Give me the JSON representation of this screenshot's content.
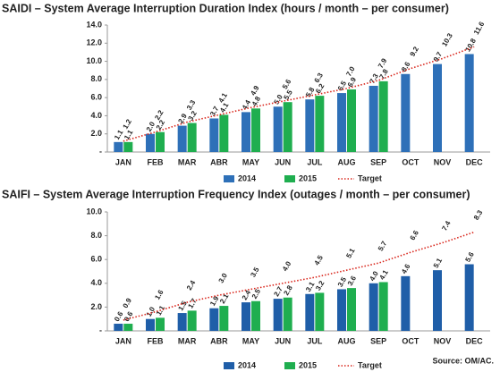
{
  "chart_data": [
    {
      "type": "bar",
      "title": "SAIDI – System Average Interruption Duration Index (hours / month – per consumer)",
      "categories": [
        "JAN",
        "FEB",
        "MAR",
        "ABR",
        "MAY",
        "JUN",
        "JUL",
        "AUG",
        "SEP",
        "OCT",
        "NOV",
        "DEC"
      ],
      "ylim": [
        0,
        14
      ],
      "yticks": [
        {
          "value": 0,
          "label": "-"
        },
        {
          "value": 2,
          "label": "2.0"
        },
        {
          "value": 4,
          "label": "4.0"
        },
        {
          "value": 6,
          "label": "6.0"
        },
        {
          "value": 8,
          "label": "8.0"
        },
        {
          "value": 10,
          "label": "10.0"
        },
        {
          "value": 12,
          "label": "12.0"
        },
        {
          "value": 14,
          "label": "14.0"
        }
      ],
      "series": [
        {
          "name": "2014",
          "type": "bar",
          "color": "#2e70b8",
          "values": [
            1.1,
            2.0,
            2.9,
            3.7,
            4.4,
            5.0,
            5.8,
            6.5,
            7.3,
            8.6,
            9.7,
            10.8
          ],
          "value_labels": [
            "1.1",
            "2.0",
            "2.9",
            "3.7",
            "4.4",
            "5.0",
            "5.8",
            "6.5",
            "7.3",
            "8.6",
            "9.7",
            "10.8"
          ]
        },
        {
          "name": "2015",
          "type": "bar",
          "color": "#1fae4f",
          "values": [
            1.1,
            2.2,
            3.2,
            4.1,
            4.8,
            5.5,
            6.2,
            6.9,
            7.8,
            null,
            null,
            null
          ],
          "value_labels": [
            "1.1",
            "2.2",
            "3.2",
            "4.1",
            "4.8",
            "5.5",
            "6.2",
            "6.9",
            "7.8",
            null,
            null,
            null
          ]
        },
        {
          "name": "Target",
          "type": "line",
          "color": "#d9261c",
          "values": [
            1.2,
            2.2,
            3.3,
            4.1,
            4.9,
            5.6,
            6.3,
            7.0,
            7.9,
            9.2,
            10.3,
            11.6
          ],
          "value_labels": [
            "1.2",
            "2.2",
            "3.3",
            "4.1",
            "4.9",
            "5.6",
            "6.3",
            "7.0",
            "7.9",
            "9.2",
            "10.3",
            "11.6"
          ]
        }
      ]
    },
    {
      "type": "bar",
      "title": "SAIFI – System Average Interruption Frequency Index (outages / month – per consumer)",
      "categories": [
        "JAN",
        "FEB",
        "MAR",
        "ABR",
        "MAY",
        "JUN",
        "JUL",
        "AUG",
        "SEP",
        "OCT",
        "NOV",
        "DEC"
      ],
      "ylim": [
        0,
        10
      ],
      "yticks": [
        {
          "value": 0,
          "label": "-"
        },
        {
          "value": 2,
          "label": "2.0"
        },
        {
          "value": 4,
          "label": "4.0"
        },
        {
          "value": 6,
          "label": "6.0"
        },
        {
          "value": 8,
          "label": "8.0"
        },
        {
          "value": 10,
          "label": "10.0"
        }
      ],
      "series": [
        {
          "name": "2014",
          "type": "bar",
          "color": "#1f5ea8",
          "values": [
            0.6,
            1.0,
            1.5,
            1.9,
            2.4,
            2.7,
            3.1,
            3.5,
            4.0,
            4.6,
            5.1,
            5.6
          ],
          "value_labels": [
            "0.6",
            "1.0",
            "1.5",
            "1.9",
            "2.4",
            "2.7",
            "3.1",
            "3.5",
            "4.0",
            "4.6",
            "5.1",
            "5.6"
          ]
        },
        {
          "name": "2015",
          "type": "bar",
          "color": "#1fae4f",
          "values": [
            0.6,
            1.1,
            1.7,
            2.1,
            2.5,
            2.8,
            3.2,
            3.6,
            4.1,
            null,
            null,
            null
          ],
          "value_labels": [
            "0.6",
            "1.1",
            "1.7",
            "2.1",
            "2.5",
            "2.8",
            "3.2",
            "3.6",
            "4.1",
            null,
            null,
            null
          ]
        },
        {
          "name": "Target",
          "type": "line",
          "color": "#d9261c",
          "values": [
            0.9,
            1.6,
            2.4,
            3.0,
            3.5,
            4.0,
            4.5,
            5.1,
            5.7,
            6.6,
            7.4,
            8.3
          ],
          "value_labels": [
            "0.9",
            "1.6",
            "2.4",
            "3.0",
            "3.5",
            "4.0",
            "4.5",
            "5.1",
            "5.7",
            "6.6",
            "7.4",
            "8.3"
          ]
        }
      ],
      "annotation": "Source: OM/AC."
    }
  ]
}
